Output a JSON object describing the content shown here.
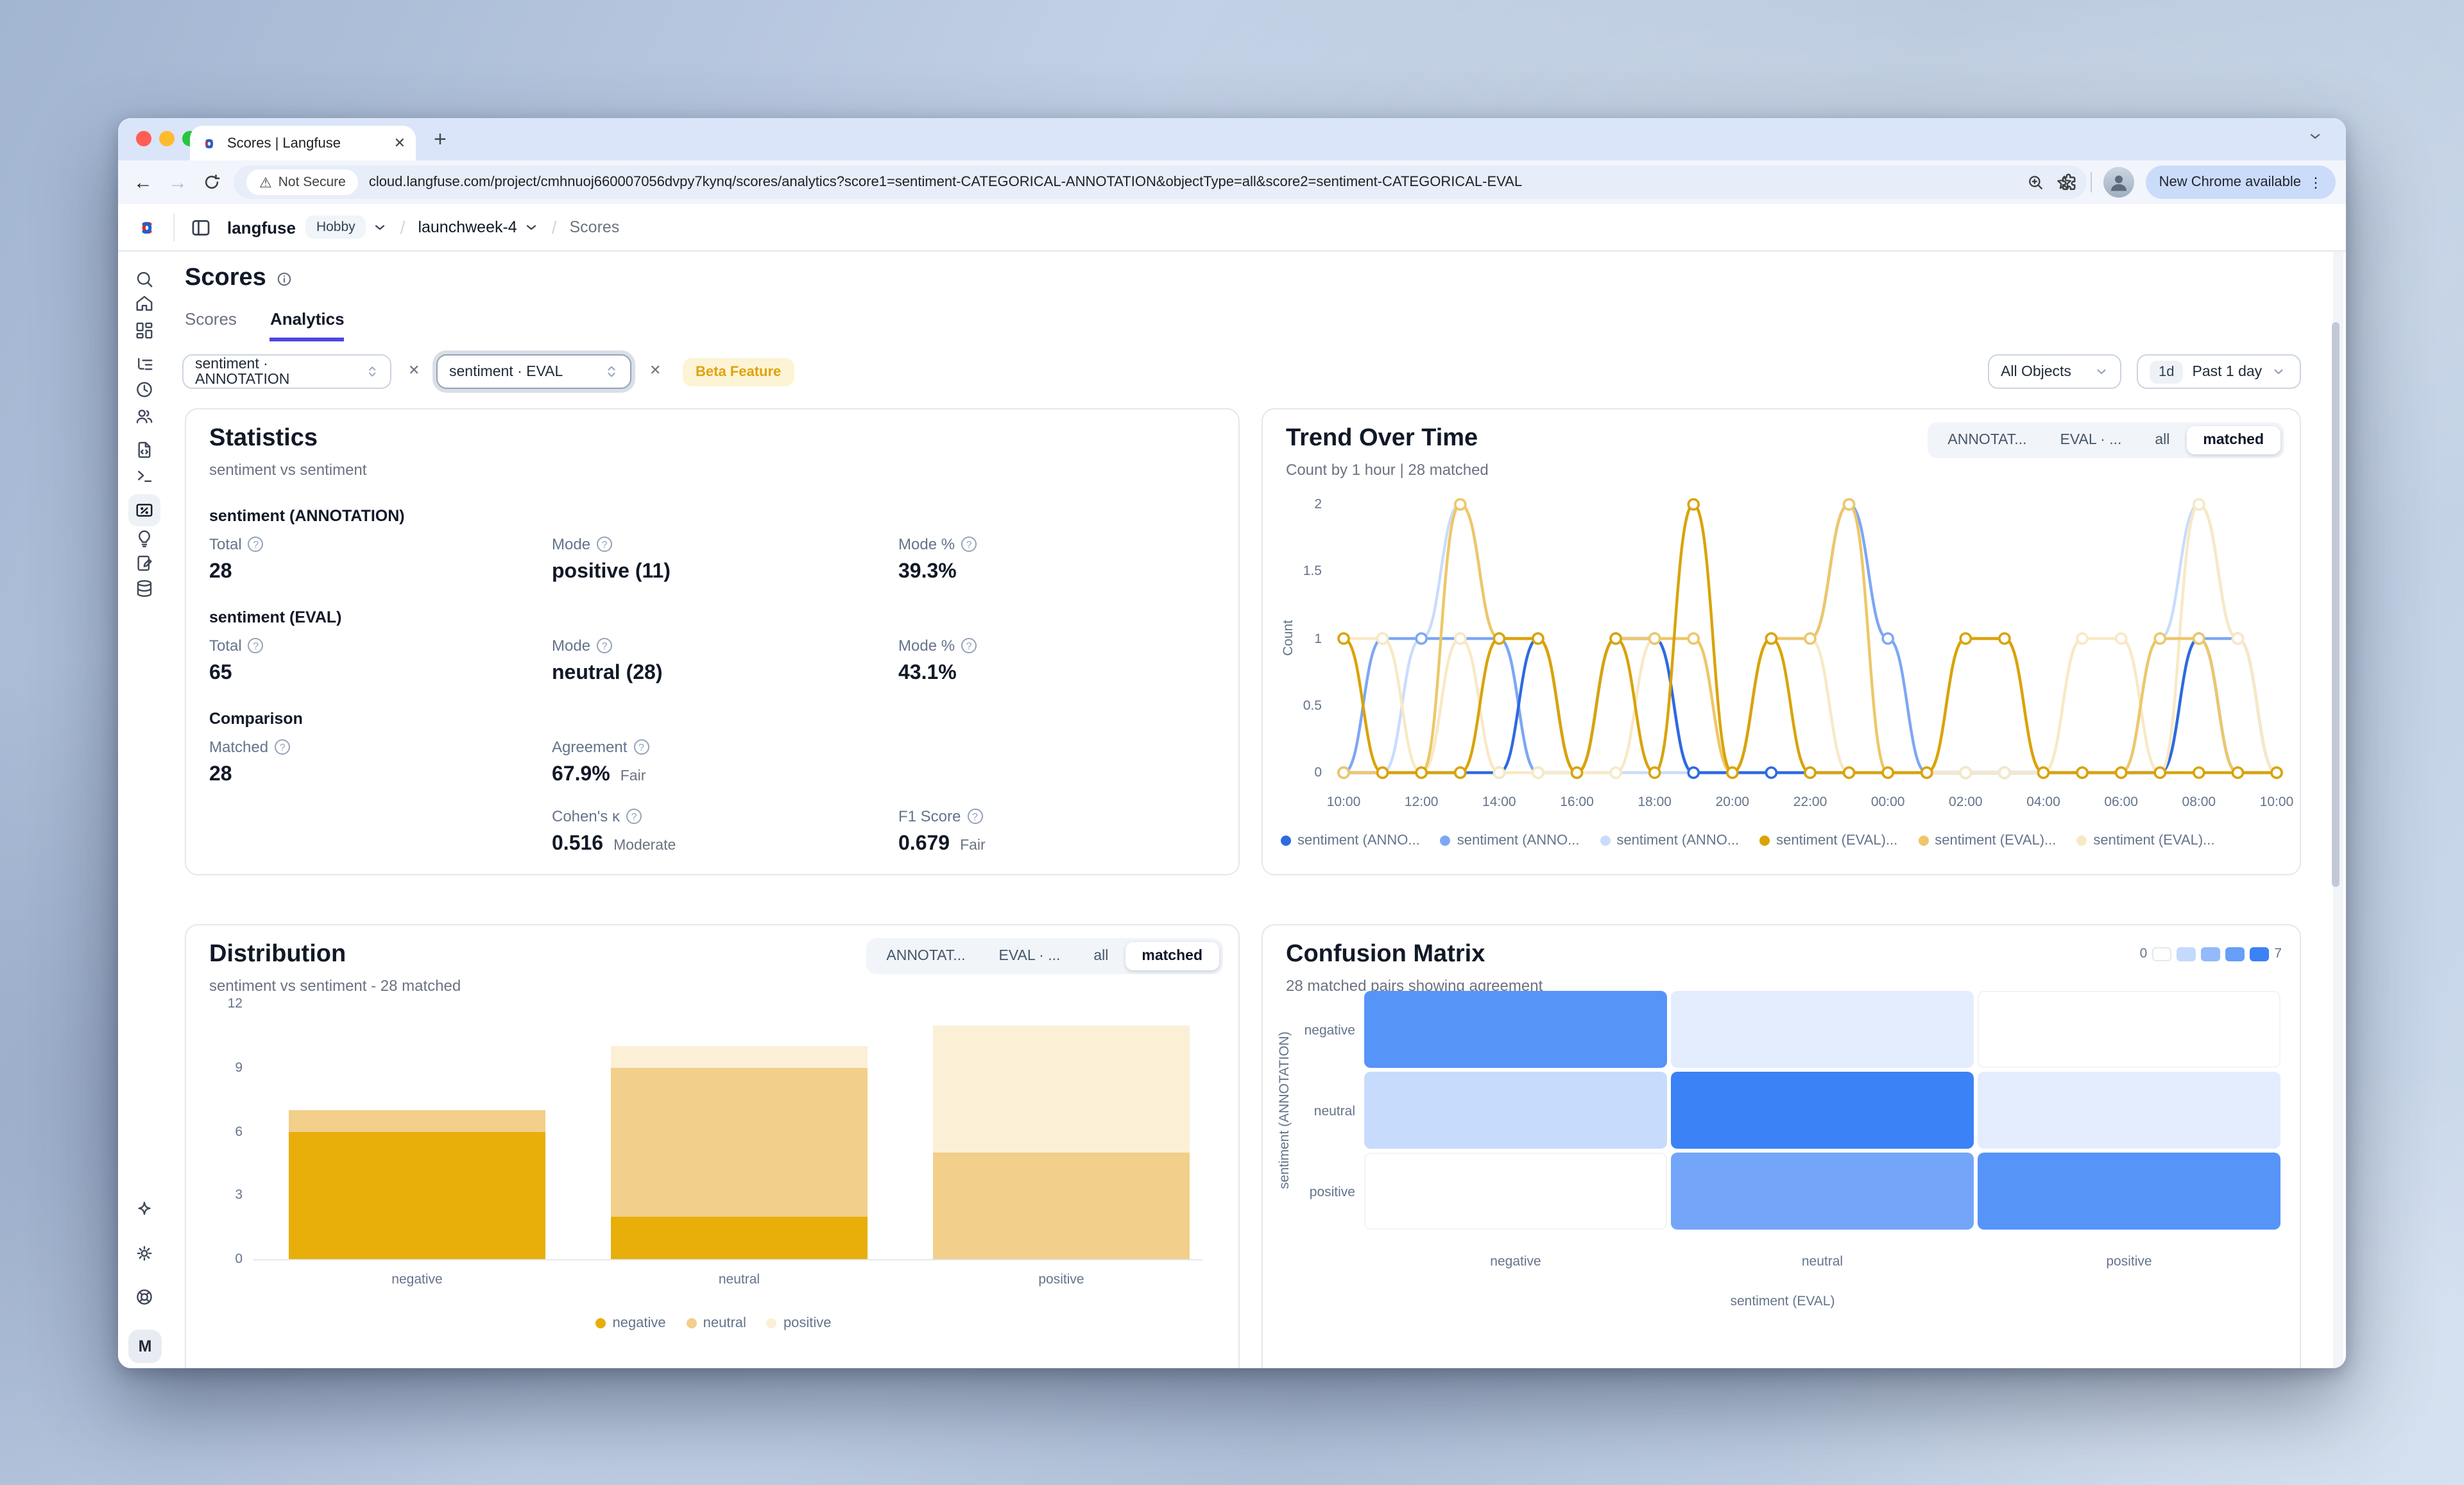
{
  "icons": {
    "help": "?",
    "close": "✕",
    "kebab": "⋮",
    "plus": "+",
    "back": "←",
    "forward": "→",
    "warning": "⚠",
    "slash": "/",
    "scale_min": "0",
    "scale_max": "7"
  },
  "browser": {
    "tab_title": "Scores | Langfuse",
    "security_label": "Not Secure",
    "url": "cloud.langfuse.com/project/cmhnuoj660007056dvpy7kynq/scores/analytics?score1=sentiment-CATEGORICAL-ANNOTATION&objectType=all&score2=sentiment-CATEGORICAL-EVAL",
    "update_button": "New Chrome available"
  },
  "header": {
    "org": "langfuse",
    "org_badge": "Hobby",
    "project": "launchweek-4",
    "page": "Scores"
  },
  "page": {
    "title": "Scores",
    "tab_scores": "Scores",
    "tab_analytics": "Analytics"
  },
  "filters": {
    "score1": "sentiment · ANNOTATION",
    "score2": "sentiment · EVAL",
    "beta_badge": "Beta Feature",
    "object_filter": "All Objects",
    "time_shortcut": "1d",
    "time_range": "Past 1 day"
  },
  "toggles": {
    "options": [
      "ANNOTAT...",
      "EVAL · ...",
      "all",
      "matched"
    ],
    "selected": "matched"
  },
  "statistics": {
    "title": "Statistics",
    "subtitle": "sentiment vs sentiment",
    "sections": [
      {
        "heading": "sentiment (ANNOTATION)",
        "metrics": [
          {
            "label": "Total",
            "value": "28"
          },
          {
            "label": "Mode",
            "value": "positive (11)"
          },
          {
            "label": "Mode %",
            "value": "39.3%"
          }
        ]
      },
      {
        "heading": "sentiment (EVAL)",
        "metrics": [
          {
            "label": "Total",
            "value": "65"
          },
          {
            "label": "Mode",
            "value": "neutral (28)"
          },
          {
            "label": "Mode %",
            "value": "43.1%"
          }
        ]
      },
      {
        "heading": "Comparison",
        "row1": [
          {
            "label": "Matched",
            "value": "28",
            "badge": ""
          },
          {
            "label": "Agreement",
            "value": "67.9%",
            "badge": "Fair"
          }
        ],
        "row2": [
          {
            "label": "Cohen's κ",
            "value": "0.516",
            "badge": "Moderate"
          },
          {
            "label": "F1 Score",
            "value": "0.679",
            "badge": "Fair"
          }
        ]
      }
    ]
  },
  "trend": {
    "title": "Trend Over Time",
    "subtitle": "Count by 1 hour | 28 matched",
    "type": "line",
    "ylabel": "Count",
    "ymax": 2,
    "y_ticks": [
      "2",
      "1.5",
      "1",
      "0.5",
      "0"
    ],
    "x_ticks": [
      "10:00",
      "12:00",
      "14:00",
      "16:00",
      "18:00",
      "20:00",
      "22:00",
      "00:00",
      "02:00",
      "04:00",
      "06:00",
      "08:00",
      "10:00"
    ],
    "series": [
      {
        "name": "sentiment (ANNOTATION) negative",
        "color": "#2e6ae0",
        "values": [
          0,
          0,
          0,
          0,
          0,
          1,
          0,
          1,
          1,
          0,
          0,
          0,
          0,
          0,
          0,
          0,
          0,
          0,
          0,
          0,
          0,
          0,
          1,
          0,
          0
        ]
      },
      {
        "name": "sentiment (ANNOTATION) neutral",
        "color": "#7da7f4",
        "values": [
          0,
          1,
          1,
          1,
          1,
          0,
          0,
          1,
          1,
          0,
          0,
          1,
          1,
          2,
          1,
          0,
          0,
          0,
          0,
          0,
          0,
          0,
          1,
          1,
          0
        ]
      },
      {
        "name": "sentiment (ANNOTATION) positive",
        "color": "#cadcfb",
        "values": [
          0,
          0,
          1,
          2,
          1,
          0,
          0,
          0,
          0,
          0,
          0,
          0,
          0,
          0,
          0,
          0,
          0,
          0,
          0,
          0,
          0,
          1,
          2,
          1,
          0
        ]
      },
      {
        "name": "sentiment (EVAL) negative",
        "color": "#d9a307",
        "values": [
          1,
          0,
          0,
          0,
          1,
          1,
          0,
          1,
          0,
          2,
          0,
          1,
          0,
          0,
          0,
          0,
          1,
          1,
          0,
          0,
          0,
          0,
          0,
          0,
          0
        ]
      },
      {
        "name": "sentiment (EVAL) neutral",
        "color": "#edc768",
        "values": [
          0,
          0,
          0,
          2,
          1,
          1,
          0,
          1,
          1,
          1,
          0,
          1,
          1,
          2,
          0,
          0,
          1,
          1,
          0,
          0,
          0,
          1,
          1,
          0,
          0
        ]
      },
      {
        "name": "sentiment (EVAL) positive",
        "color": "#f8e9c5",
        "values": [
          1,
          1,
          0,
          1,
          0,
          0,
          0,
          0,
          1,
          1,
          0,
          1,
          1,
          0,
          0,
          0,
          0,
          0,
          0,
          1,
          1,
          0,
          2,
          1,
          0
        ]
      }
    ],
    "legend": [
      "sentiment (ANNO...",
      "sentiment (ANNO...",
      "sentiment (ANNO...",
      "sentiment (EVAL)...",
      "sentiment (EVAL)...",
      "sentiment (EVAL)..."
    ]
  },
  "distribution": {
    "title": "Distribution",
    "subtitle": "sentiment vs sentiment - 28 matched",
    "type": "bar",
    "ymax": 12,
    "y_ticks": [
      "12",
      "9",
      "6",
      "3",
      "0"
    ],
    "categories": [
      "negative",
      "neutral",
      "positive"
    ],
    "series": [
      {
        "name": "negative",
        "color": "#e8ae0a",
        "values": [
          6,
          2,
          0
        ]
      },
      {
        "name": "neutral",
        "color": "#f2cf8a",
        "values": [
          1,
          7,
          5
        ]
      },
      {
        "name": "positive",
        "color": "#fbf0d6",
        "values": [
          0,
          1,
          6
        ]
      }
    ],
    "legend": [
      "negative",
      "neutral",
      "positive"
    ]
  },
  "confusion": {
    "title": "Confusion Matrix",
    "subtitle": "28 matched pairs showing agreement",
    "type": "heatmap",
    "rows": [
      "negative",
      "neutral",
      "positive"
    ],
    "cols": [
      "negative",
      "neutral",
      "positive"
    ],
    "values": [
      [
        6,
        1,
        0
      ],
      [
        2,
        7,
        1
      ],
      [
        0,
        5,
        6
      ]
    ],
    "row_axis": "sentiment (ANNOTATION)",
    "col_axis": "sentiment (EVAL)",
    "scale_min": "0",
    "scale_max": "7",
    "base_color": "#3b82f6"
  },
  "colors": {
    "accent": "#4f46e5",
    "traffic": [
      "#ff5d55",
      "#ffbb2e",
      "#27c63f"
    ]
  }
}
